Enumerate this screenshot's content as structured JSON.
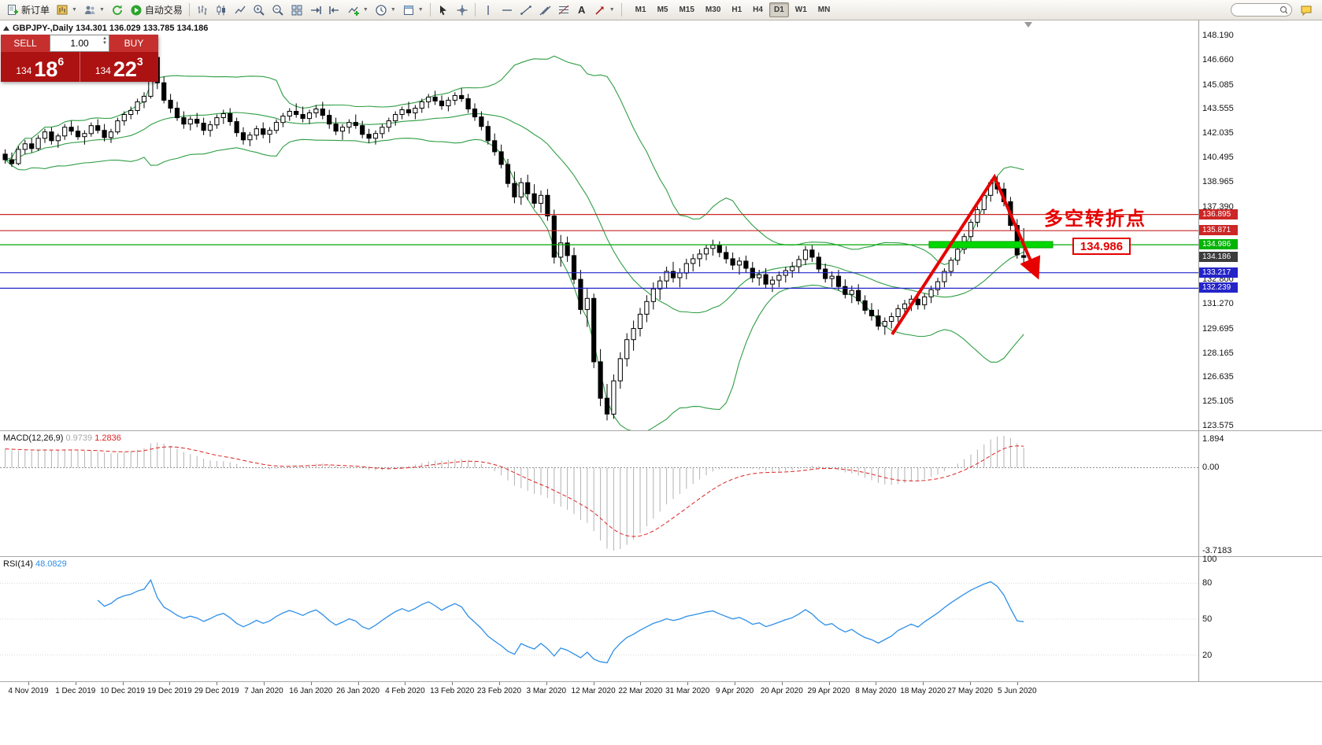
{
  "toolbar": {
    "new_order_label": "新订单",
    "autotrading_label": "自动交易",
    "timeframes": [
      "M1",
      "M5",
      "M15",
      "M30",
      "H1",
      "H4",
      "D1",
      "W1",
      "MN"
    ],
    "active_timeframe": "D1"
  },
  "chart_header": "GBPJPY-,Daily 134.301 136.029 133.785 134.186",
  "trade_panel": {
    "sell_label": "SELL",
    "buy_label": "BUY",
    "lot": "1.00",
    "sell_price_prefix": "134",
    "sell_price_big": "18",
    "sell_price_sup": "6",
    "buy_price_prefix": "134",
    "buy_price_big": "22",
    "buy_price_sup": "3"
  },
  "price_axis": {
    "labels": [
      "148.190",
      "146.660",
      "145.085",
      "143.555",
      "142.035",
      "140.495",
      "138.965",
      "137.390",
      "132.800",
      "131.270",
      "129.695",
      "128.165",
      "126.635",
      "125.105",
      "123.575"
    ],
    "badges": [
      {
        "text": "136.895",
        "price": 136.895,
        "color": "#cc2626"
      },
      {
        "text": "135.871",
        "price": 135.871,
        "color": "#cc2626"
      },
      {
        "text": "134.986",
        "price": 134.986,
        "color": "#00b400"
      },
      {
        "text": "134.186",
        "price": 134.186,
        "color": "#3c3c3c"
      },
      {
        "text": "133.217",
        "price": 133.217,
        "color": "#2424c8"
      },
      {
        "text": "132.239",
        "price": 132.239,
        "color": "#2424c8"
      }
    ]
  },
  "macd_panel": {
    "name": "MACD(12,26,9)",
    "main_value": "0.9739",
    "signal_value": "1.2836",
    "scale": [
      "1.894",
      "0.00",
      "-3.7183"
    ]
  },
  "rsi_panel": {
    "name": "RSI(14)",
    "value": "48.0829",
    "scale": [
      "100",
      "80",
      "50",
      "20"
    ]
  },
  "time_axis": [
    "4 Nov 2019",
    "1 Dec 2019",
    "10 Dec 2019",
    "19 Dec 2019",
    "29 Dec 2019",
    "7 Jan 2020",
    "16 Jan 2020",
    "26 Jan 2020",
    "4 Feb 2020",
    "13 Feb 2020",
    "23 Feb 2020",
    "3 Mar 2020",
    "12 Mar 2020",
    "22 Mar 2020",
    "31 Mar 2020",
    "9 Apr 2020",
    "20 Apr 2020",
    "29 Apr 2020",
    "8 May 2020",
    "18 May 2020",
    "27 May 2020",
    "5 Jun 2020"
  ],
  "chart_data": {
    "type": "candlestick",
    "symbol": "GBPJPY-",
    "timeframe": "Daily",
    "last_bar": {
      "open": 134.301,
      "high": 136.029,
      "low": 133.785,
      "close": 134.186
    },
    "current_bid": 134.186,
    "bollinger_color": "#2f9e44",
    "horizontal_lines": [
      {
        "price": 136.895,
        "color": "#cc2626"
      },
      {
        "price": 135.871,
        "color": "#cc2626"
      },
      {
        "price": 134.986,
        "color": "#00a800"
      },
      {
        "price": 133.217,
        "color": "#2424c8"
      },
      {
        "price": 132.239,
        "color": "#2424c8"
      }
    ],
    "annotations": {
      "turning_point_text": "多空转折点",
      "price_box_text": "134.986",
      "arrow_color": "#e60000",
      "green_segment_price": 134.986
    },
    "macd": {
      "main": 0.9739,
      "signal": 1.2836,
      "scale_max": 1.894,
      "scale_min": -3.7183
    },
    "rsi": {
      "value": 48.0829
    },
    "ohlc": [
      [
        140.7,
        141.0,
        140.1,
        140.35
      ],
      [
        140.35,
        140.8,
        139.9,
        140.1
      ],
      [
        140.1,
        141.2,
        140.0,
        141.0
      ],
      [
        141.0,
        141.6,
        140.7,
        141.35
      ],
      [
        141.35,
        141.7,
        140.8,
        141.05
      ],
      [
        141.05,
        141.9,
        140.9,
        141.7
      ],
      [
        141.7,
        142.3,
        141.4,
        142.1
      ],
      [
        142.1,
        142.4,
        141.3,
        141.55
      ],
      [
        141.55,
        142.0,
        141.1,
        141.85
      ],
      [
        141.85,
        142.6,
        141.6,
        142.4
      ],
      [
        142.4,
        142.8,
        141.9,
        142.15
      ],
      [
        142.15,
        142.5,
        141.6,
        141.8
      ],
      [
        141.8,
        142.2,
        141.3,
        142.0
      ],
      [
        142.0,
        142.7,
        141.8,
        142.5
      ],
      [
        142.5,
        142.9,
        142.0,
        142.2
      ],
      [
        142.2,
        142.6,
        141.5,
        141.75
      ],
      [
        141.75,
        142.3,
        141.4,
        142.1
      ],
      [
        142.1,
        143.0,
        141.95,
        142.8
      ],
      [
        142.8,
        143.4,
        142.5,
        143.2
      ],
      [
        143.2,
        143.7,
        142.9,
        143.45
      ],
      [
        143.45,
        144.2,
        143.2,
        144.0
      ],
      [
        144.0,
        144.6,
        143.6,
        144.35
      ],
      [
        144.35,
        147.95,
        144.2,
        146.8
      ],
      [
        146.8,
        147.3,
        144.8,
        145.2
      ],
      [
        145.2,
        145.6,
        143.9,
        144.1
      ],
      [
        144.1,
        144.5,
        143.3,
        143.6
      ],
      [
        143.6,
        144.0,
        142.8,
        143.0
      ],
      [
        143.0,
        143.4,
        142.3,
        142.6
      ],
      [
        142.6,
        143.1,
        142.2,
        142.9
      ],
      [
        142.9,
        143.3,
        142.4,
        142.65
      ],
      [
        142.65,
        143.0,
        141.9,
        142.2
      ],
      [
        142.2,
        142.8,
        141.8,
        142.55
      ],
      [
        142.55,
        143.2,
        142.3,
        143.0
      ],
      [
        143.0,
        143.5,
        142.6,
        143.25
      ],
      [
        143.25,
        143.6,
        142.5,
        142.75
      ],
      [
        142.75,
        143.0,
        141.8,
        142.05
      ],
      [
        142.05,
        142.4,
        141.3,
        141.6
      ],
      [
        141.6,
        142.1,
        141.2,
        141.9
      ],
      [
        141.9,
        142.5,
        141.6,
        142.3
      ],
      [
        142.3,
        142.7,
        141.7,
        141.95
      ],
      [
        141.95,
        142.4,
        141.4,
        142.2
      ],
      [
        142.2,
        142.9,
        142.0,
        142.7
      ],
      [
        142.7,
        143.3,
        142.4,
        143.1
      ],
      [
        143.1,
        143.6,
        142.8,
        143.4
      ],
      [
        143.4,
        143.9,
        143.0,
        143.2
      ],
      [
        143.2,
        143.7,
        142.7,
        142.95
      ],
      [
        142.95,
        143.5,
        142.6,
        143.3
      ],
      [
        143.3,
        143.8,
        143.0,
        143.55
      ],
      [
        143.55,
        144.0,
        142.9,
        143.15
      ],
      [
        143.15,
        143.5,
        142.3,
        142.6
      ],
      [
        142.6,
        143.0,
        141.9,
        142.15
      ],
      [
        142.15,
        142.6,
        141.6,
        142.4
      ],
      [
        142.4,
        142.9,
        142.0,
        142.7
      ],
      [
        142.7,
        143.2,
        142.3,
        142.5
      ],
      [
        142.5,
        142.8,
        141.7,
        141.95
      ],
      [
        141.95,
        142.3,
        141.4,
        141.7
      ],
      [
        141.7,
        142.2,
        141.3,
        142.0
      ],
      [
        142.0,
        142.6,
        141.7,
        142.4
      ],
      [
        142.4,
        143.0,
        142.1,
        142.8
      ],
      [
        142.8,
        143.4,
        142.5,
        143.2
      ],
      [
        143.2,
        143.7,
        142.9,
        143.5
      ],
      [
        143.5,
        144.0,
        143.1,
        143.3
      ],
      [
        143.3,
        143.8,
        142.9,
        143.6
      ],
      [
        143.6,
        144.2,
        143.3,
        144.0
      ],
      [
        144.0,
        144.5,
        143.6,
        144.3
      ],
      [
        144.3,
        144.7,
        143.8,
        144.05
      ],
      [
        144.05,
        144.4,
        143.5,
        143.75
      ],
      [
        143.75,
        144.3,
        143.4,
        144.1
      ],
      [
        144.1,
        144.6,
        143.8,
        144.4
      ],
      [
        144.4,
        144.85,
        144.0,
        144.2
      ],
      [
        144.2,
        144.5,
        143.3,
        143.55
      ],
      [
        143.55,
        143.9,
        142.8,
        143.05
      ],
      [
        143.05,
        143.4,
        142.2,
        142.45
      ],
      [
        142.45,
        142.8,
        141.3,
        141.55
      ],
      [
        141.55,
        142.0,
        140.6,
        140.85
      ],
      [
        140.85,
        141.3,
        139.8,
        140.05
      ],
      [
        140.05,
        140.4,
        138.6,
        138.85
      ],
      [
        138.85,
        139.6,
        137.6,
        138.0
      ],
      [
        138.0,
        139.2,
        137.5,
        138.9
      ],
      [
        138.9,
        139.4,
        137.8,
        138.2
      ],
      [
        138.2,
        138.8,
        137.3,
        137.6
      ],
      [
        137.6,
        138.4,
        137.0,
        138.1
      ],
      [
        138.1,
        138.5,
        136.5,
        136.8
      ],
      [
        136.8,
        137.2,
        133.8,
        134.2
      ],
      [
        134.2,
        135.6,
        133.6,
        135.1
      ],
      [
        135.1,
        135.5,
        133.9,
        134.3
      ],
      [
        134.3,
        134.8,
        132.5,
        132.8
      ],
      [
        132.8,
        133.4,
        130.6,
        130.9
      ],
      [
        130.9,
        132.2,
        129.8,
        131.6
      ],
      [
        131.6,
        131.9,
        127.2,
        127.6
      ],
      [
        127.6,
        128.4,
        124.8,
        125.3
      ],
      [
        125.3,
        126.2,
        123.9,
        124.3
      ],
      [
        124.3,
        126.8,
        124.0,
        126.4
      ],
      [
        126.4,
        128.2,
        125.9,
        127.8
      ],
      [
        127.8,
        129.4,
        127.3,
        129.0
      ],
      [
        129.0,
        130.2,
        128.3,
        129.7
      ],
      [
        129.7,
        131.0,
        129.2,
        130.6
      ],
      [
        130.6,
        131.8,
        130.1,
        131.4
      ],
      [
        131.4,
        132.6,
        130.9,
        132.2
      ],
      [
        132.2,
        133.0,
        131.5,
        132.7
      ],
      [
        132.7,
        133.6,
        132.2,
        133.3
      ],
      [
        133.3,
        133.9,
        132.6,
        132.9
      ],
      [
        132.9,
        133.5,
        132.3,
        133.2
      ],
      [
        133.2,
        134.1,
        132.8,
        133.8
      ],
      [
        133.8,
        134.4,
        133.3,
        134.1
      ],
      [
        134.1,
        134.7,
        133.6,
        134.4
      ],
      [
        134.4,
        135.0,
        134.0,
        134.75
      ],
      [
        134.75,
        135.3,
        134.3,
        134.95
      ],
      [
        134.95,
        135.2,
        134.2,
        134.5
      ],
      [
        134.5,
        134.9,
        133.8,
        134.1
      ],
      [
        134.1,
        134.5,
        133.4,
        133.7
      ],
      [
        133.7,
        134.2,
        133.1,
        133.95
      ],
      [
        133.95,
        134.3,
        133.2,
        133.5
      ],
      [
        133.5,
        133.9,
        132.6,
        132.9
      ],
      [
        132.9,
        133.4,
        132.4,
        133.1
      ],
      [
        133.1,
        133.5,
        132.2,
        132.5
      ],
      [
        132.5,
        133.0,
        132.0,
        132.75
      ],
      [
        132.75,
        133.3,
        132.3,
        133.05
      ],
      [
        133.05,
        133.6,
        132.6,
        133.35
      ],
      [
        133.35,
        133.9,
        132.9,
        133.6
      ],
      [
        133.6,
        134.3,
        133.2,
        134.05
      ],
      [
        134.05,
        134.9,
        133.7,
        134.65
      ],
      [
        134.65,
        135.0,
        133.9,
        134.2
      ],
      [
        134.2,
        134.5,
        133.2,
        133.45
      ],
      [
        133.45,
        133.8,
        132.6,
        132.85
      ],
      [
        132.85,
        133.3,
        132.3,
        133.0
      ],
      [
        133.0,
        133.4,
        132.1,
        132.35
      ],
      [
        132.35,
        132.8,
        131.6,
        131.85
      ],
      [
        131.85,
        132.4,
        131.3,
        132.1
      ],
      [
        132.1,
        132.5,
        131.2,
        131.45
      ],
      [
        131.45,
        131.8,
        130.6,
        130.85
      ],
      [
        130.85,
        131.3,
        130.2,
        130.5
      ],
      [
        130.5,
        130.9,
        129.6,
        129.85
      ],
      [
        129.85,
        130.4,
        129.3,
        130.15
      ],
      [
        130.15,
        130.7,
        129.7,
        130.45
      ],
      [
        130.45,
        131.2,
        130.1,
        130.95
      ],
      [
        130.95,
        131.5,
        130.4,
        131.25
      ],
      [
        131.25,
        131.8,
        130.8,
        131.55
      ],
      [
        131.55,
        132.0,
        130.9,
        131.2
      ],
      [
        131.2,
        131.9,
        130.9,
        131.7
      ],
      [
        131.7,
        132.4,
        131.3,
        132.15
      ],
      [
        132.15,
        132.9,
        131.8,
        132.65
      ],
      [
        132.65,
        133.5,
        132.3,
        133.3
      ],
      [
        133.3,
        134.2,
        133.0,
        134.0
      ],
      [
        134.0,
        134.9,
        133.7,
        134.7
      ],
      [
        134.7,
        135.7,
        134.4,
        135.5
      ],
      [
        135.5,
        136.6,
        135.2,
        136.4
      ],
      [
        136.4,
        137.4,
        136.1,
        137.2
      ],
      [
        137.2,
        138.3,
        136.9,
        138.1
      ],
      [
        138.1,
        139.1,
        137.7,
        138.9
      ],
      [
        138.9,
        139.3,
        138.2,
        138.5
      ],
      [
        138.5,
        138.9,
        137.4,
        137.7
      ],
      [
        137.7,
        138.0,
        135.9,
        136.2
      ],
      [
        136.2,
        136.6,
        134.1,
        134.35
      ],
      [
        134.301,
        136.029,
        133.785,
        134.186
      ]
    ]
  }
}
